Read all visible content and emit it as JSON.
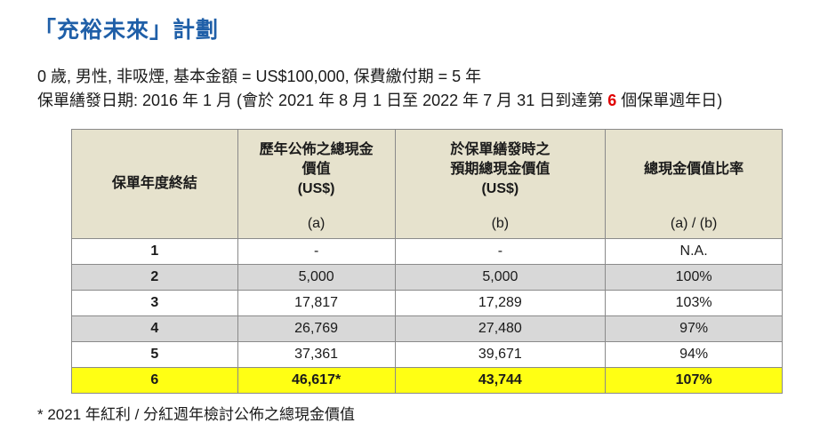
{
  "title": "「充裕未來」計劃",
  "subtitle_line1": "0 歲, 男性, 非吸煙, 基本金額 = US$100,000, 保費繳付期 = 5 年",
  "subtitle_line2_pre": "保單繕發日期: 2016 年 1 月 (會於 2021 年 8 月 1 日至 2022 年 7 月 31 日到達第 ",
  "subtitle_line2_highlight": "6",
  "subtitle_line2_post": " 個保單週年日)",
  "table": {
    "headers": [
      {
        "line1": "保單年度終結",
        "line2": "",
        "line3": "",
        "sub": ""
      },
      {
        "line1": "歷年公佈之總現金",
        "line2": "價值",
        "line3": "(US$)",
        "sub": "(a)"
      },
      {
        "line1": "於保單繕發時之",
        "line2": "預期總現金價值",
        "line3": "(US$)",
        "sub": "(b)"
      },
      {
        "line1": "總現金價值比率",
        "line2": "",
        "line3": "",
        "sub": "(a) / (b)"
      }
    ],
    "rows": [
      {
        "year": "1",
        "a": "-",
        "b": "-",
        "ratio": "N.A."
      },
      {
        "year": "2",
        "a": "5,000",
        "b": "5,000",
        "ratio": "100%"
      },
      {
        "year": "3",
        "a": "17,817",
        "b": "17,289",
        "ratio": "103%"
      },
      {
        "year": "4",
        "a": "26,769",
        "b": "27,480",
        "ratio": "97%"
      },
      {
        "year": "5",
        "a": "37,361",
        "b": "39,671",
        "ratio": "94%"
      },
      {
        "year": "6",
        "a": "46,617*",
        "b": "43,744",
        "ratio": "107%"
      }
    ],
    "colors": {
      "header_bg": "#e6e2cd",
      "grey_row": "#d8d8d8",
      "highlight_row": "#ffff14"
    }
  },
  "footnote": "* 2021 年紅利 / 分紅週年檢討公佈之總現金價值"
}
